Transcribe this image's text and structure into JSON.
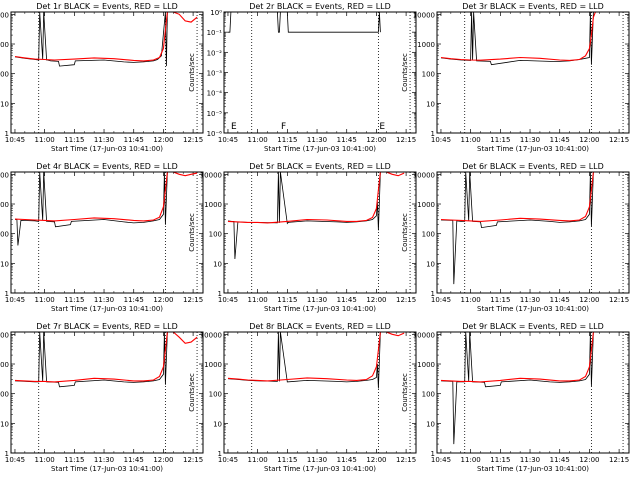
{
  "page": {
    "background": "#ffffff"
  },
  "colors": {
    "events": "#000000",
    "lld": "#ff0000",
    "axes": "#000000"
  },
  "x_axis": {
    "ticks": [
      "10:45",
      "11:00",
      "11:15",
      "11:30",
      "11:45",
      "12:00",
      "12:15"
    ],
    "tick_minutes": [
      0,
      15,
      30,
      45,
      60,
      75,
      90
    ],
    "range_minutes": [
      -2,
      95
    ],
    "label": "Start Time (17-Jun-03 10:41:00)"
  },
  "y_label": "Counts/sec",
  "y_ticks_standard": [
    "1",
    "10",
    "100",
    "1000",
    "10000"
  ],
  "y_ticks_detector2": [
    "10⁻⁶",
    "10⁻⁵",
    "10⁻⁴",
    "10⁻³",
    "10⁻²",
    "10⁻¹",
    "10⁰"
  ],
  "vertical_dotted_lines_minutes": [
    12,
    76,
    92
  ],
  "markers": [
    "E",
    "F",
    "E"
  ],
  "chart_data": [
    {
      "type": "line",
      "title": "Det 1r BLACK = Events, RED = LLD",
      "yscale": "log",
      "ylim": [
        1,
        12000
      ],
      "xlabel": "Start Time (17-Jun-03 10:41:00)",
      "ylabel": "Counts/sec",
      "series": [
        {
          "name": "Events",
          "color": "#000000",
          "x": [
            0,
            5,
            10,
            12,
            12.5,
            14,
            14.5,
            16,
            16.5,
            18,
            22,
            22.5,
            30,
            30.5,
            45,
            55,
            60,
            65,
            70,
            72,
            74,
            76,
            76.5,
            77,
            77.5
          ],
          "y": [
            370,
            330,
            300,
            290,
            12000,
            300,
            12000,
            290,
            290,
            270,
            260,
            180,
            200,
            270,
            290,
            250,
            240,
            250,
            270,
            300,
            400,
            12000,
            180,
            12000,
            12000
          ]
        },
        {
          "name": "LLD",
          "color": "#ff0000",
          "x": [
            0,
            5,
            10,
            15,
            20,
            30,
            40,
            50,
            60,
            65,
            70,
            73,
            75,
            76,
            77,
            78,
            80,
            83,
            86,
            89,
            92
          ],
          "y": [
            380,
            340,
            310,
            300,
            290,
            310,
            340,
            320,
            280,
            270,
            290,
            350,
            700,
            3000,
            12000,
            12000,
            12000,
            10000,
            6000,
            5500,
            8000
          ]
        }
      ]
    },
    {
      "type": "line",
      "title": "Det 2r BLACK = Events, RED = LLD",
      "yscale": "log",
      "ylim": [
        1e-06,
        1
      ],
      "xlabel": "Start Time (17-Jun-03 10:41:00)",
      "ylabel": "Counts/sec",
      "series": [
        {
          "name": "Events",
          "color": "#000000",
          "x": [
            0,
            1,
            1.5,
            25,
            25.5,
            26,
            26.5,
            30,
            30.5,
            76,
            76.5,
            77
          ],
          "y": [
            0.1,
            0.1,
            1,
            1,
            0.1,
            0.1,
            1,
            1,
            0.1,
            0.1,
            1,
            0.1
          ]
        }
      ]
    },
    {
      "type": "line",
      "title": "Det 3r BLACK = Events, RED = LLD",
      "yscale": "log",
      "ylim": [
        1,
        12000
      ],
      "xlabel": "Start Time (17-Jun-03 10:41:00)",
      "ylabel": "Counts/sec",
      "series": [
        {
          "name": "Events",
          "color": "#000000",
          "x": [
            0,
            5,
            10,
            15,
            15.5,
            16,
            16.5,
            18,
            25,
            25.5,
            40,
            55,
            60,
            65,
            70,
            73,
            75,
            75.5,
            76,
            77,
            78
          ],
          "y": [
            340,
            310,
            290,
            280,
            12000,
            280,
            12000,
            270,
            260,
            200,
            280,
            260,
            260,
            270,
            300,
            330,
            350,
            12000,
            200,
            12000,
            12000
          ]
        },
        {
          "name": "LLD",
          "color": "#ff0000",
          "x": [
            0,
            5,
            10,
            15,
            20,
            30,
            40,
            50,
            60,
            65,
            70,
            73,
            75,
            76,
            77,
            78,
            80
          ],
          "y": [
            350,
            320,
            300,
            290,
            285,
            310,
            350,
            330,
            290,
            280,
            300,
            400,
            700,
            2000,
            8000,
            12000,
            12000
          ]
        }
      ]
    },
    {
      "type": "line",
      "title": "Det 4r BLACK = Events, RED = LLD",
      "yscale": "log",
      "ylim": [
        1,
        12000
      ],
      "xlabel": "Start Time (17-Jun-03 10:41:00)",
      "ylabel": "Counts/sec",
      "series": [
        {
          "name": "Events",
          "color": "#000000",
          "x": [
            0,
            1,
            1.5,
            3,
            10,
            12,
            12.5,
            14,
            14.5,
            16,
            20,
            20.5,
            28,
            28.5,
            45,
            55,
            60,
            65,
            70,
            73,
            75,
            75.5,
            76,
            77
          ],
          "y": [
            300,
            300,
            40,
            280,
            270,
            260,
            12000,
            280,
            12000,
            260,
            250,
            170,
            200,
            260,
            300,
            250,
            230,
            240,
            270,
            300,
            450,
            12000,
            200,
            12000
          ]
        },
        {
          "name": "LLD",
          "color": "#ff0000",
          "x": [
            0,
            5,
            10,
            15,
            20,
            30,
            40,
            50,
            60,
            65,
            70,
            73,
            75,
            76,
            77,
            78,
            80,
            83,
            86,
            89,
            92
          ],
          "y": [
            310,
            300,
            290,
            280,
            270,
            300,
            340,
            320,
            280,
            270,
            290,
            360,
            800,
            3000,
            12000,
            12000,
            12000,
            10000,
            9000,
            10000,
            11000
          ]
        }
      ]
    },
    {
      "type": "line",
      "title": "Det 5r BLACK = Events, RED = LLD",
      "yscale": "log",
      "ylim": [
        1,
        12000
      ],
      "xlabel": "Start Time (17-Jun-03 10:41:00)",
      "ylabel": "Counts/sec",
      "series": [
        {
          "name": "Events",
          "color": "#000000",
          "x": [
            0,
            2,
            3,
            3.5,
            5,
            10,
            15,
            25,
            25.5,
            26,
            26.5,
            30,
            30.5,
            40,
            55,
            60,
            65,
            70,
            73,
            75,
            75.5,
            76,
            77
          ],
          "y": [
            270,
            260,
            260,
            14,
            250,
            240,
            240,
            230,
            12000,
            230,
            12000,
            220,
            240,
            270,
            250,
            240,
            250,
            270,
            300,
            400,
            1200,
            130,
            12000
          ]
        },
        {
          "name": "LLD",
          "color": "#ff0000",
          "x": [
            0,
            5,
            10,
            15,
            20,
            30,
            40,
            50,
            60,
            65,
            70,
            73,
            75,
            76,
            77,
            78,
            80,
            83,
            86,
            89
          ],
          "y": [
            260,
            250,
            240,
            240,
            230,
            260,
            300,
            290,
            260,
            260,
            280,
            350,
            700,
            3000,
            12000,
            12000,
            12000,
            10000,
            9000,
            11000
          ]
        }
      ]
    },
    {
      "type": "line",
      "title": "Det 6r BLACK = Events, RED = LLD",
      "yscale": "log",
      "ylim": [
        1,
        12000
      ],
      "xlabel": "Start Time (17-Jun-03 10:41:00)",
      "ylabel": "Counts/sec",
      "series": [
        {
          "name": "Events",
          "color": "#000000",
          "x": [
            0,
            5,
            6,
            6.5,
            8,
            10,
            12,
            12.5,
            14,
            14.5,
            16,
            20,
            20.5,
            28,
            28.5,
            45,
            55,
            60,
            65,
            70,
            73,
            75,
            75.5,
            76,
            77,
            78
          ],
          "y": [
            290,
            280,
            280,
            2,
            270,
            260,
            260,
            12000,
            270,
            12000,
            260,
            250,
            160,
            190,
            250,
            290,
            260,
            240,
            250,
            270,
            300,
            450,
            12000,
            180,
            12000,
            12000
          ]
        },
        {
          "name": "LLD",
          "color": "#ff0000",
          "x": [
            0,
            5,
            10,
            15,
            20,
            30,
            40,
            50,
            60,
            65,
            70,
            73,
            75,
            76,
            77,
            78,
            80
          ],
          "y": [
            300,
            290,
            280,
            270,
            260,
            290,
            330,
            310,
            280,
            270,
            290,
            380,
            800,
            3000,
            12000,
            12000,
            12000
          ]
        }
      ]
    },
    {
      "type": "line",
      "title": "Det 7r BLACK = Events, RED = LLD",
      "yscale": "log",
      "ylim": [
        1,
        12000
      ],
      "xlabel": "Start Time (17-Jun-03 10:41:00)",
      "ylabel": "Counts/sec",
      "series": [
        {
          "name": "Events",
          "color": "#000000",
          "x": [
            0,
            5,
            10,
            12,
            12.5,
            14,
            14.5,
            16,
            22,
            22.5,
            30,
            30.5,
            45,
            55,
            60,
            65,
            70,
            73,
            75,
            75.5,
            76,
            77
          ],
          "y": [
            270,
            260,
            250,
            250,
            12000,
            260,
            12000,
            250,
            240,
            170,
            190,
            250,
            290,
            250,
            240,
            250,
            270,
            300,
            450,
            12000,
            200,
            12000
          ]
        },
        {
          "name": "LLD",
          "color": "#ff0000",
          "x": [
            0,
            5,
            10,
            15,
            20,
            30,
            40,
            50,
            60,
            65,
            70,
            73,
            75,
            76,
            77,
            78,
            80,
            83,
            86,
            89,
            92
          ],
          "y": [
            280,
            270,
            260,
            260,
            250,
            280,
            330,
            310,
            270,
            270,
            290,
            380,
            800,
            3000,
            12000,
            12000,
            12000,
            8000,
            5000,
            5500,
            8000
          ]
        }
      ]
    },
    {
      "type": "line",
      "title": "Det 8r BLACK = Events, RED = LLD",
      "yscale": "log",
      "ylim": [
        1,
        12000
      ],
      "xlabel": "Start Time (17-Jun-03 10:41:00)",
      "ylabel": "Counts/sec",
      "series": [
        {
          "name": "Events",
          "color": "#000000",
          "x": [
            0,
            5,
            10,
            15,
            25,
            25.5,
            26,
            26.5,
            30,
            40,
            55,
            60,
            65,
            70,
            73,
            75,
            75.5,
            76,
            77
          ],
          "y": [
            320,
            300,
            280,
            270,
            260,
            12000,
            260,
            12000,
            250,
            280,
            260,
            250,
            260,
            280,
            300,
            350,
            1000,
            150,
            12000
          ]
        },
        {
          "name": "LLD",
          "color": "#ff0000",
          "x": [
            0,
            5,
            10,
            15,
            20,
            30,
            40,
            50,
            60,
            65,
            70,
            73,
            75,
            76,
            77,
            78,
            80,
            83,
            86,
            89
          ],
          "y": [
            330,
            310,
            290,
            280,
            270,
            300,
            340,
            320,
            290,
            280,
            300,
            400,
            800,
            3000,
            12000,
            12000,
            12000,
            10000,
            9000,
            11000
          ]
        }
      ]
    },
    {
      "type": "line",
      "title": "Det 9r BLACK = Events, RED = LLD",
      "yscale": "log",
      "ylim": [
        1,
        12000
      ],
      "xlabel": "Start Time (17-Jun-03 10:41:00)",
      "ylabel": "Counts/sec",
      "series": [
        {
          "name": "Events",
          "color": "#000000",
          "x": [
            0,
            5,
            6,
            6.5,
            8,
            10,
            12,
            12.5,
            14,
            14.5,
            16,
            22,
            22.5,
            30,
            30.5,
            45,
            55,
            60,
            65,
            70,
            73,
            75,
            75.5,
            76,
            77,
            78
          ],
          "y": [
            270,
            260,
            260,
            2,
            250,
            250,
            250,
            12000,
            260,
            12000,
            250,
            240,
            170,
            190,
            250,
            290,
            250,
            240,
            250,
            270,
            300,
            450,
            12000,
            180,
            12000,
            12000
          ]
        },
        {
          "name": "LLD",
          "color": "#ff0000",
          "x": [
            0,
            5,
            10,
            15,
            20,
            30,
            40,
            50,
            60,
            65,
            70,
            73,
            75,
            76,
            77,
            78,
            80
          ],
          "y": [
            280,
            270,
            260,
            260,
            250,
            280,
            330,
            310,
            270,
            270,
            290,
            380,
            800,
            3000,
            12000,
            12000,
            12000
          ]
        }
      ]
    }
  ]
}
